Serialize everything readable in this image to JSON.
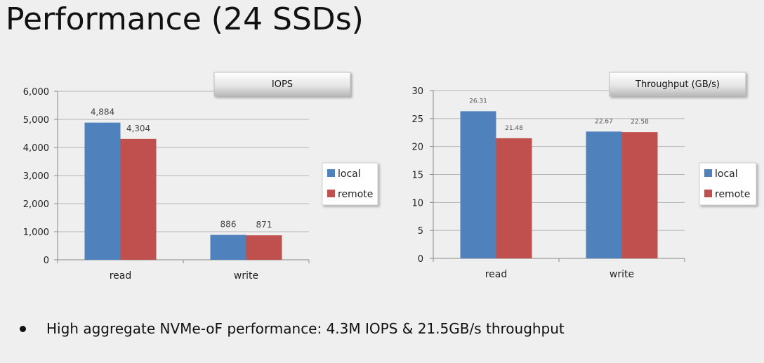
{
  "slide": {
    "title": "Performance (24 SSDs)",
    "bullet": "High aggregate NVMe-oF performance: 4.3M IOPS & 21.5GB/s throughput"
  },
  "colors": {
    "local": "#4f81bd",
    "remote": "#c0504d"
  },
  "chart_data": [
    {
      "type": "bar",
      "title": "IOPS",
      "categories": [
        "read",
        "write"
      ],
      "series": [
        {
          "name": "local",
          "values": [
            4884,
            886
          ]
        },
        {
          "name": "remote",
          "values": [
            4304,
            871
          ]
        }
      ],
      "value_labels": [
        [
          "4,884",
          "886"
        ],
        [
          "4,304",
          "871"
        ]
      ],
      "ylim": [
        0,
        6000
      ],
      "yticks": [
        "0",
        "1,000",
        "2,000",
        "3,000",
        "4,000",
        "5,000",
        "6,000"
      ],
      "ytick_values": [
        0,
        1000,
        2000,
        3000,
        4000,
        5000,
        6000
      ],
      "grid": true,
      "legend": "right"
    },
    {
      "type": "bar",
      "title": "Throughput (GB/s)",
      "categories": [
        "read",
        "write"
      ],
      "series": [
        {
          "name": "local",
          "values": [
            26.31,
            22.67
          ]
        },
        {
          "name": "remote",
          "values": [
            21.48,
            22.58
          ]
        }
      ],
      "value_labels": [
        [
          "26.31",
          "22.67"
        ],
        [
          "21.48",
          "22.58"
        ]
      ],
      "ylim": [
        0,
        30
      ],
      "yticks": [
        "0",
        "5",
        "10",
        "15",
        "20",
        "25",
        "30"
      ],
      "ytick_values": [
        0,
        5,
        10,
        15,
        20,
        25,
        30
      ],
      "grid": true,
      "legend": "right"
    }
  ]
}
